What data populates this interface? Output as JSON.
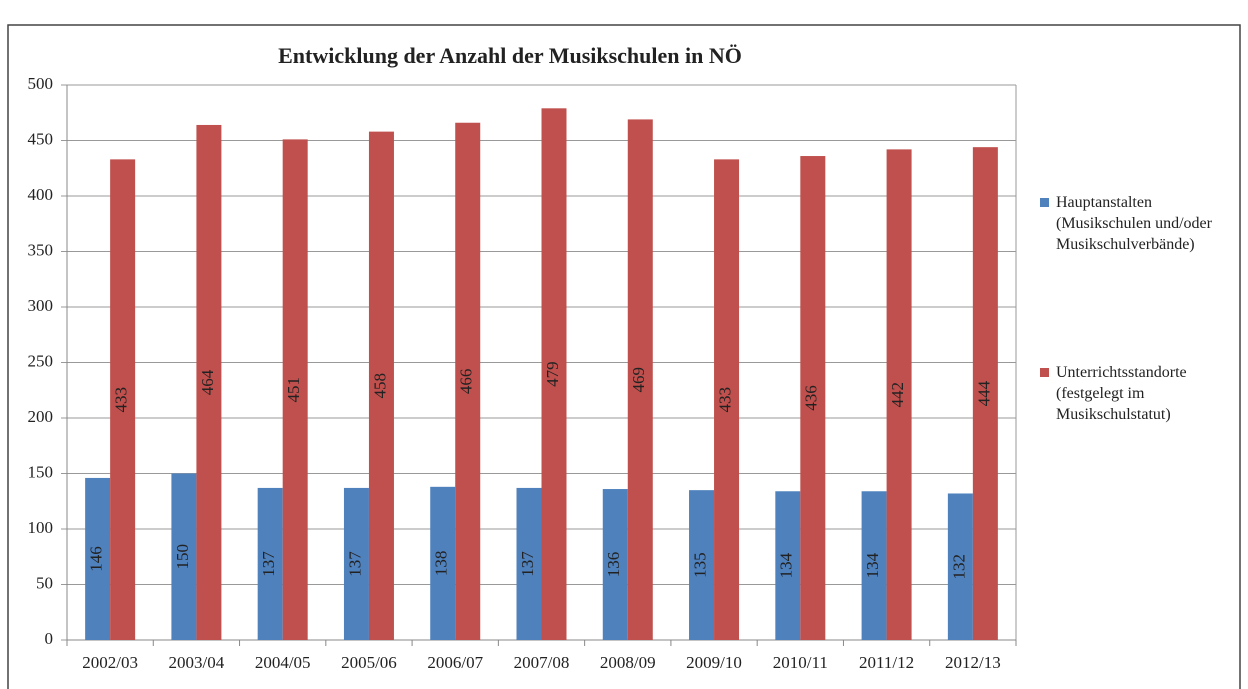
{
  "chart_data": {
    "type": "bar",
    "title": "Entwicklung der Anzahl der Musikschulen in NÖ",
    "categories": [
      "2002/03",
      "2003/04",
      "2004/05",
      "2005/06",
      "2006/07",
      "2007/08",
      "2008/09",
      "2009/10",
      "2010/11",
      "2011/12",
      "2012/13"
    ],
    "series": [
      {
        "name": "Hauptanstalten (Musikschulen und/oder Musikschulverbände)",
        "color": "#4f81bd",
        "values": [
          146,
          150,
          137,
          137,
          138,
          137,
          136,
          135,
          134,
          134,
          132
        ]
      },
      {
        "name": "Unterrichtsstandorte (festgelegt im Musikschulstatut)",
        "color": "#c0504d",
        "values": [
          433,
          464,
          451,
          458,
          466,
          479,
          469,
          433,
          436,
          442,
          444
        ]
      }
    ],
    "ylim": [
      0,
      500
    ],
    "yticks": [
      0,
      50,
      100,
      150,
      200,
      250,
      300,
      350,
      400,
      450,
      500
    ],
    "grid": true,
    "legend": "right"
  }
}
